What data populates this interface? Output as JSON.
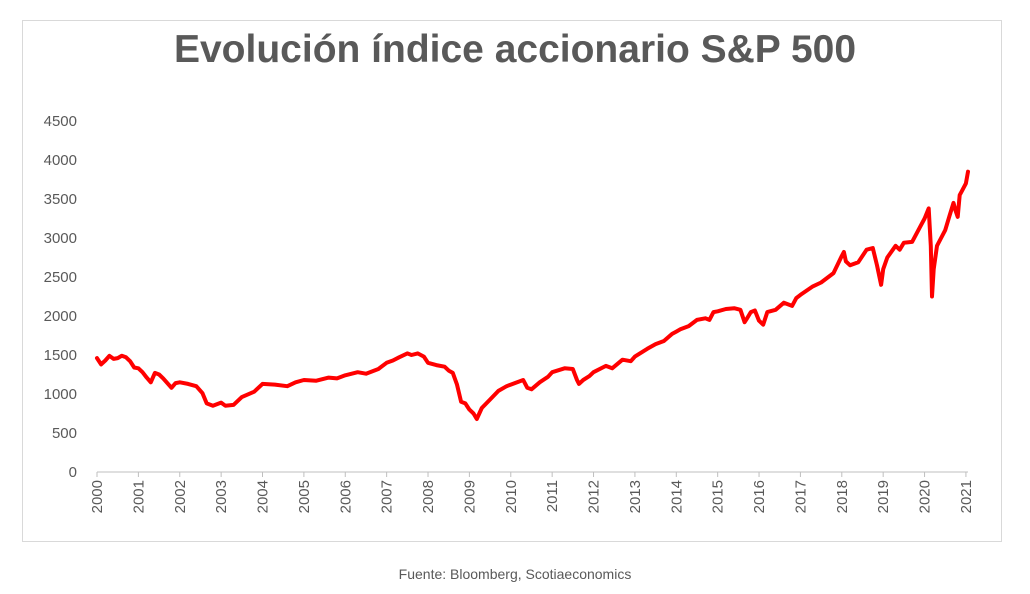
{
  "chart_data": {
    "type": "line",
    "title": "Evolución índice accionario S&P 500",
    "xlabel": "",
    "ylabel": "",
    "xlim": [
      2000,
      2021.05
    ],
    "ylim": [
      0,
      4500
    ],
    "yticks": [
      0,
      500,
      1000,
      1500,
      2000,
      2500,
      3000,
      3500,
      4000,
      4500
    ],
    "xticks": [
      "2000",
      "2001",
      "2002",
      "2003",
      "2004",
      "2005",
      "2006",
      "2007",
      "2008",
      "2009",
      "2010",
      "2011",
      "2012",
      "2013",
      "2014",
      "2015",
      "2016",
      "2017",
      "2018",
      "2019",
      "2020",
      "2021"
    ],
    "grid": false,
    "legend": "none",
    "series": [
      {
        "color": "#ff0000",
        "x": [
          2000.0,
          2000.1,
          2000.2,
          2000.3,
          2000.4,
          2000.5,
          2000.6,
          2000.7,
          2000.8,
          2000.9,
          2001.0,
          2001.1,
          2001.2,
          2001.3,
          2001.4,
          2001.5,
          2001.6,
          2001.7,
          2001.8,
          2001.9,
          2002.0,
          2002.2,
          2002.4,
          2002.55,
          2002.65,
          2002.8,
          2003.0,
          2003.1,
          2003.3,
          2003.5,
          2003.8,
          2004.0,
          2004.3,
          2004.6,
          2004.8,
          2005.0,
          2005.3,
          2005.6,
          2005.8,
          2006.0,
          2006.3,
          2006.5,
          2006.8,
          2007.0,
          2007.15,
          2007.3,
          2007.5,
          2007.6,
          2007.75,
          2007.9,
          2008.0,
          2008.2,
          2008.4,
          2008.5,
          2008.6,
          2008.7,
          2008.8,
          2008.9,
          2009.0,
          2009.1,
          2009.18,
          2009.3,
          2009.5,
          2009.7,
          2009.9,
          2010.0,
          2010.3,
          2010.4,
          2010.5,
          2010.7,
          2010.9,
          2011.0,
          2011.3,
          2011.5,
          2011.6,
          2011.65,
          2011.75,
          2011.9,
          2012.0,
          2012.3,
          2012.45,
          2012.7,
          2012.9,
          2013.0,
          2013.3,
          2013.5,
          2013.7,
          2013.9,
          2014.0,
          2014.1,
          2014.3,
          2014.5,
          2014.7,
          2014.8,
          2014.9,
          2015.0,
          2015.2,
          2015.4,
          2015.55,
          2015.65,
          2015.7,
          2015.8,
          2015.9,
          2016.0,
          2016.1,
          2016.2,
          2016.4,
          2016.6,
          2016.8,
          2016.9,
          2017.0,
          2017.3,
          2017.5,
          2017.8,
          2018.0,
          2018.05,
          2018.1,
          2018.2,
          2018.4,
          2018.6,
          2018.75,
          2018.85,
          2018.95,
          2019.0,
          2019.1,
          2019.3,
          2019.4,
          2019.5,
          2019.7,
          2019.9,
          2020.0,
          2020.1,
          2020.15,
          2020.18,
          2020.22,
          2020.3,
          2020.4,
          2020.5,
          2020.6,
          2020.7,
          2020.75,
          2020.8,
          2020.85,
          2020.9,
          2021.0,
          2021.05
        ],
        "y": [
          1460,
          1380,
          1430,
          1490,
          1450,
          1460,
          1490,
          1470,
          1420,
          1340,
          1330,
          1280,
          1210,
          1150,
          1270,
          1250,
          1200,
          1140,
          1080,
          1140,
          1150,
          1130,
          1100,
          1010,
          880,
          850,
          890,
          850,
          860,
          960,
          1030,
          1130,
          1120,
          1100,
          1150,
          1180,
          1170,
          1210,
          1200,
          1240,
          1280,
          1260,
          1320,
          1400,
          1430,
          1470,
          1520,
          1500,
          1520,
          1480,
          1400,
          1370,
          1350,
          1300,
          1270,
          1120,
          900,
          880,
          800,
          750,
          680,
          820,
          930,
          1040,
          1100,
          1120,
          1180,
          1080,
          1060,
          1150,
          1220,
          1280,
          1330,
          1320,
          1180,
          1130,
          1180,
          1230,
          1280,
          1360,
          1330,
          1440,
          1420,
          1480,
          1580,
          1640,
          1680,
          1770,
          1800,
          1830,
          1870,
          1950,
          1970,
          1950,
          2050,
          2060,
          2090,
          2100,
          2080,
          1920,
          1960,
          2050,
          2070,
          1940,
          1890,
          2050,
          2080,
          2170,
          2130,
          2230,
          2270,
          2380,
          2430,
          2550,
          2770,
          2820,
          2700,
          2650,
          2690,
          2850,
          2870,
          2650,
          2400,
          2600,
          2750,
          2900,
          2850,
          2940,
          2950,
          3150,
          3250,
          3380,
          2900,
          2250,
          2600,
          2900,
          3000,
          3100,
          3280,
          3450,
          3350,
          3270,
          3550,
          3600,
          3700,
          3850
        ]
      }
    ]
  },
  "source_note": "Fuente: Bloomberg, Scotiaeconomics"
}
